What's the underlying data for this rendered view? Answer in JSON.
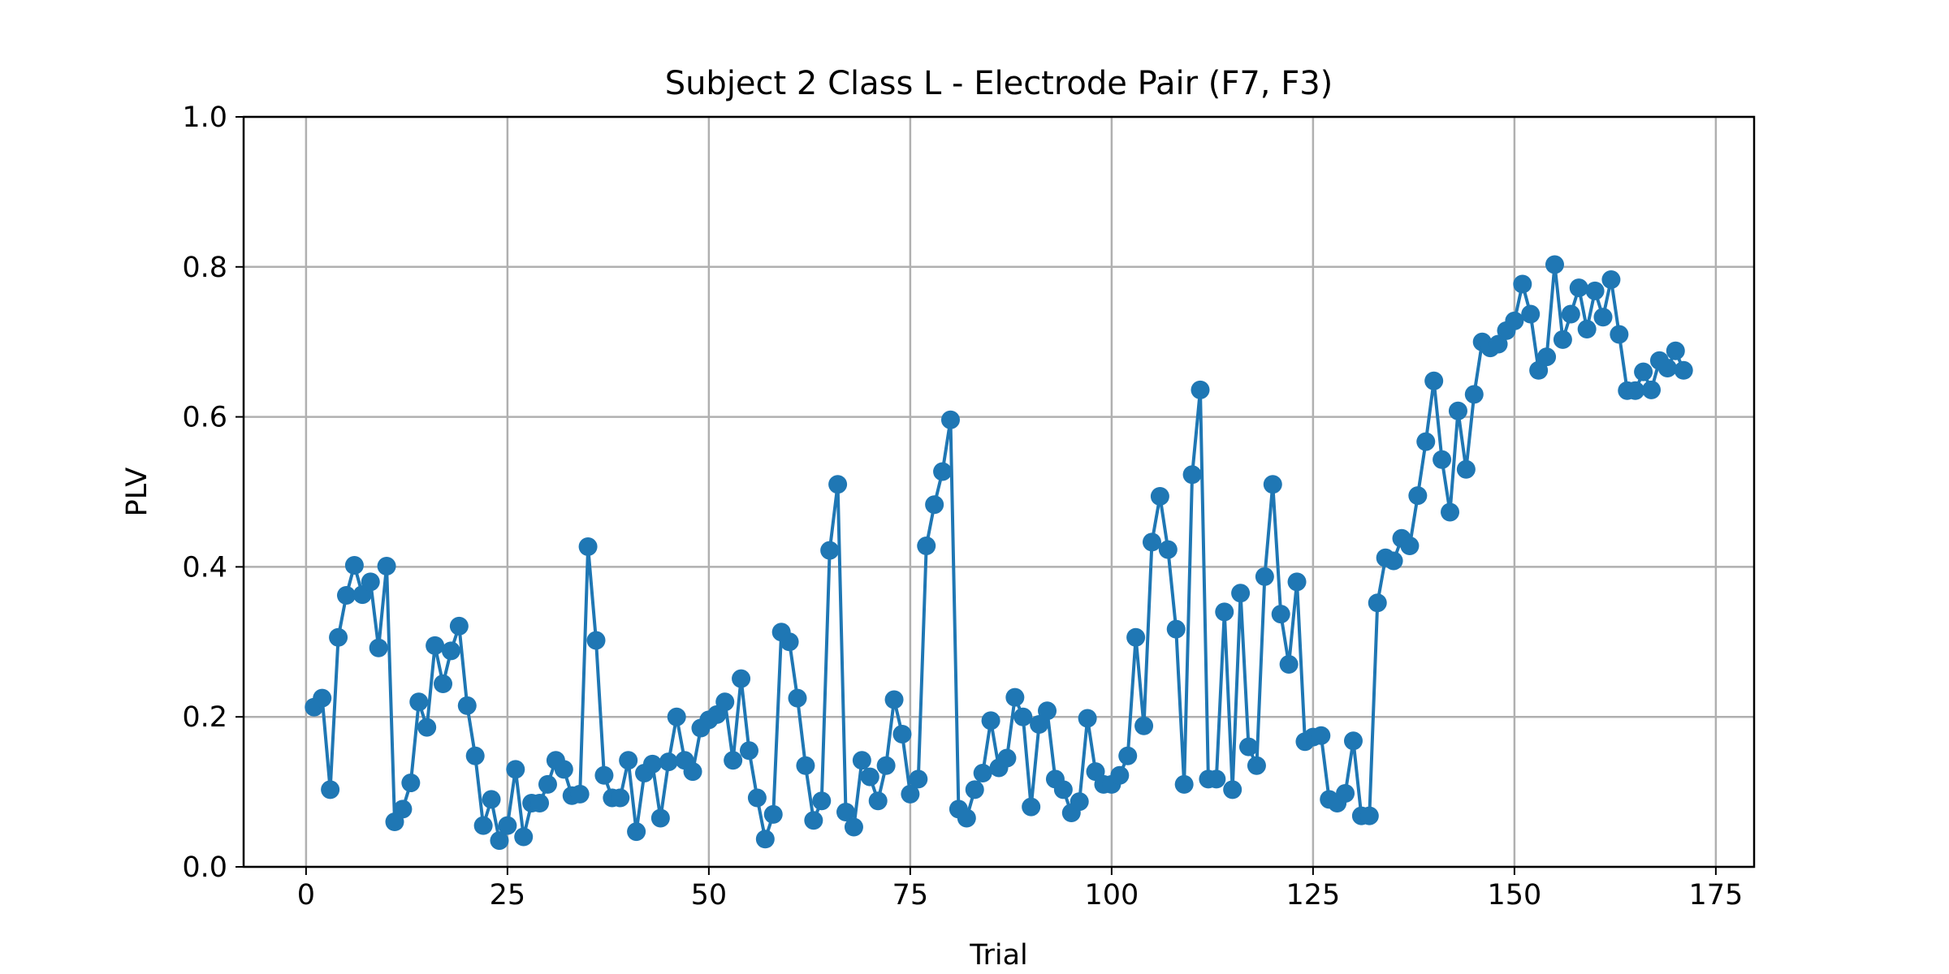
{
  "chart_data": {
    "type": "line",
    "title": "Subject 2 Class L - Electrode Pair (F7, F3)",
    "xlabel": "Trial",
    "ylabel": "PLV",
    "xlim": [
      -7.75,
      179.75
    ],
    "ylim": [
      0.0,
      1.0
    ],
    "xticks": [
      0,
      25,
      50,
      75,
      100,
      125,
      150,
      175
    ],
    "yticks": [
      0.0,
      0.2,
      0.4,
      0.6,
      0.8,
      1.0
    ],
    "xtick_labels": [
      "0",
      "25",
      "50",
      "75",
      "100",
      "125",
      "150",
      "175"
    ],
    "ytick_labels": [
      "0.0",
      "0.2",
      "0.4",
      "0.6",
      "0.8",
      "1.0"
    ],
    "grid": true,
    "legend": null,
    "colors": {
      "series": "#1f77b4"
    },
    "series": [
      {
        "marker": "circle",
        "x": [
          1,
          2,
          3,
          4,
          5,
          6,
          7,
          8,
          9,
          10,
          11,
          12,
          13,
          14,
          15,
          16,
          17,
          18,
          19,
          20,
          21,
          22,
          23,
          24,
          25,
          26,
          27,
          28,
          29,
          30,
          31,
          32,
          33,
          34,
          35,
          36,
          37,
          38,
          39,
          40,
          41,
          42,
          43,
          44,
          45,
          46,
          47,
          48,
          49,
          50,
          51,
          52,
          53,
          54,
          55,
          56,
          57,
          58,
          59,
          60,
          61,
          62,
          63,
          64,
          65,
          66,
          67,
          68,
          69,
          70,
          71,
          72,
          73,
          74,
          75,
          76,
          77,
          78,
          79,
          80,
          81,
          82,
          83,
          84,
          85,
          86,
          87,
          88,
          89,
          90,
          91,
          92,
          93,
          94,
          95,
          96,
          97,
          98,
          99,
          100,
          101,
          102,
          103,
          104,
          105,
          106,
          107,
          108,
          109,
          110,
          111,
          112,
          113,
          114,
          115,
          116,
          117,
          118,
          119,
          120,
          121,
          122,
          123,
          124,
          125,
          126,
          127,
          128,
          129,
          130,
          131,
          132,
          133,
          134,
          135,
          136,
          137,
          138,
          139,
          140,
          141,
          142,
          143,
          144,
          145,
          146,
          147,
          148,
          149,
          150,
          151,
          152,
          153,
          154,
          155,
          156,
          157,
          158,
          159,
          160,
          161,
          162,
          163,
          164,
          165,
          166,
          167,
          168,
          169,
          170,
          171
        ],
        "y": [
          0.213,
          0.225,
          0.103,
          0.306,
          0.362,
          0.402,
          0.363,
          0.38,
          0.292,
          0.401,
          0.06,
          0.077,
          0.112,
          0.22,
          0.186,
          0.295,
          0.244,
          0.288,
          0.321,
          0.215,
          0.148,
          0.055,
          0.09,
          0.035,
          0.055,
          0.13,
          0.04,
          0.085,
          0.085,
          0.11,
          0.142,
          0.13,
          0.095,
          0.097,
          0.427,
          0.302,
          0.122,
          0.092,
          0.092,
          0.142,
          0.047,
          0.125,
          0.137,
          0.065,
          0.14,
          0.2,
          0.142,
          0.127,
          0.185,
          0.196,
          0.203,
          0.22,
          0.142,
          0.251,
          0.155,
          0.092,
          0.037,
          0.07,
          0.313,
          0.3,
          0.225,
          0.135,
          0.062,
          0.088,
          0.422,
          0.51,
          0.073,
          0.053,
          0.142,
          0.12,
          0.088,
          0.135,
          0.223,
          0.177,
          0.097,
          0.117,
          0.428,
          0.483,
          0.527,
          0.596,
          0.077,
          0.065,
          0.103,
          0.125,
          0.195,
          0.132,
          0.145,
          0.226,
          0.2,
          0.08,
          0.19,
          0.208,
          0.117,
          0.103,
          0.072,
          0.087,
          0.198,
          0.127,
          0.11,
          0.11,
          0.122,
          0.148,
          0.306,
          0.188,
          0.433,
          0.494,
          0.423,
          0.317,
          0.11,
          0.523,
          0.636,
          0.117,
          0.117,
          0.34,
          0.103,
          0.365,
          0.16,
          0.135,
          0.387,
          0.51,
          0.337,
          0.27,
          0.38,
          0.167,
          0.173,
          0.175,
          0.09,
          0.085,
          0.098,
          0.168,
          0.068,
          0.068,
          0.352,
          0.412,
          0.408,
          0.438,
          0.428,
          0.495,
          0.567,
          0.648,
          0.543,
          0.473,
          0.608,
          0.53,
          0.63,
          0.7,
          0.692,
          0.697,
          0.715,
          0.728,
          0.777,
          0.737,
          0.662,
          0.68,
          0.803,
          0.703,
          0.737,
          0.772,
          0.717,
          0.768,
          0.733,
          0.783,
          0.71,
          0.635,
          0.635,
          0.66,
          0.636,
          0.675,
          0.665,
          0.688,
          0.662
        ]
      }
    ]
  }
}
